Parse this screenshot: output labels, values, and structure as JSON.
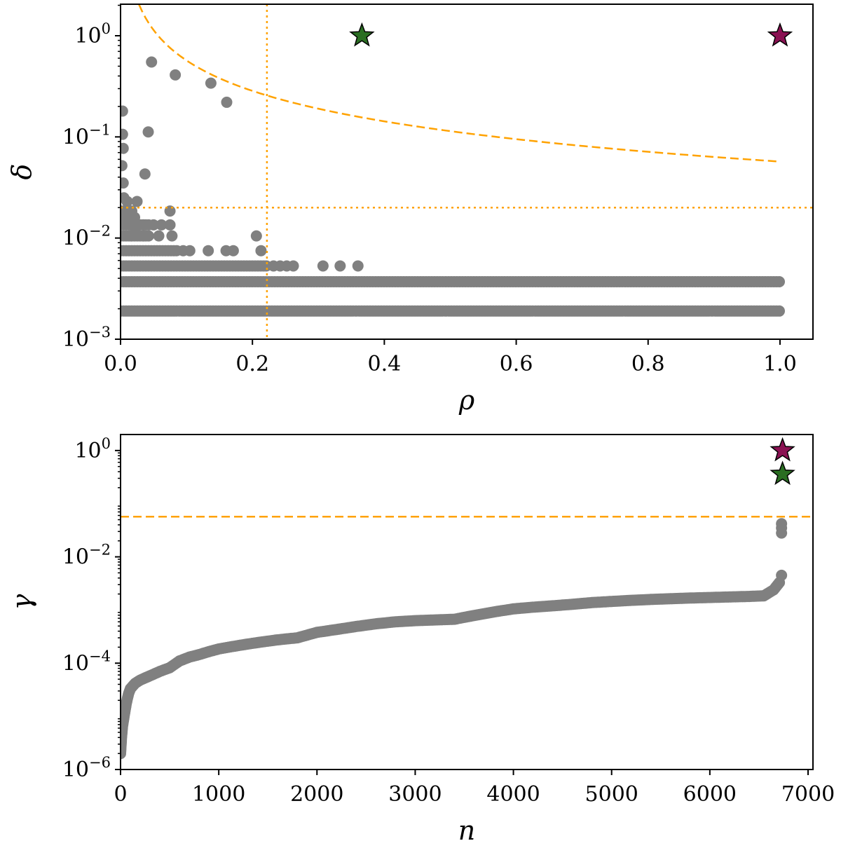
{
  "chart_data": [
    {
      "type": "scatter",
      "xlabel": "ρ",
      "ylabel": "δ",
      "xscale": "linear",
      "yscale": "log",
      "xlim": [
        0.0,
        1.05
      ],
      "ylim": [
        0.001,
        2.05
      ],
      "xticks": [
        {
          "value": 0.0,
          "label": "0.0"
        },
        {
          "value": 0.2,
          "label": "0.2"
        },
        {
          "value": 0.4,
          "label": "0.4"
        },
        {
          "value": 0.6,
          "label": "0.6"
        },
        {
          "value": 0.8,
          "label": "0.8"
        },
        {
          "value": 1.0,
          "label": "1.0"
        }
      ],
      "yticks": [
        {
          "value": 0.001,
          "base": "10",
          "exp": "−3"
        },
        {
          "value": 0.01,
          "base": "10",
          "exp": "−2"
        },
        {
          "value": 0.1,
          "base": "10",
          "exp": "−1"
        },
        {
          "value": 1.0,
          "base": "10",
          "exp": "0"
        }
      ],
      "points_color": "#808080",
      "points": [
        {
          "x": 0.047,
          "y": 0.55
        },
        {
          "x": 0.083,
          "y": 0.41
        },
        {
          "x": 0.137,
          "y": 0.34
        },
        {
          "x": 0.161,
          "y": 0.22
        },
        {
          "x": 0.003,
          "y": 0.18
        },
        {
          "x": 0.003,
          "y": 0.106
        },
        {
          "x": 0.004,
          "y": 0.077
        },
        {
          "x": 0.042,
          "y": 0.112
        },
        {
          "x": 0.002,
          "y": 0.052
        },
        {
          "x": 0.037,
          "y": 0.043
        },
        {
          "x": 0.004,
          "y": 0.035
        },
        {
          "x": 0.005,
          "y": 0.025
        },
        {
          "x": 0.01,
          "y": 0.023
        },
        {
          "x": 0.025,
          "y": 0.023
        },
        {
          "x": 0.075,
          "y": 0.0185
        },
        {
          "x": 0.008,
          "y": 0.016
        },
        {
          "x": 0.014,
          "y": 0.014
        },
        {
          "x": 0.022,
          "y": 0.0125
        },
        {
          "x": 0.035,
          "y": 0.0135
        },
        {
          "x": 0.05,
          "y": 0.0135
        },
        {
          "x": 0.062,
          "y": 0.0135
        },
        {
          "x": 0.075,
          "y": 0.0135
        },
        {
          "x": 0.016,
          "y": 0.0105
        },
        {
          "x": 0.035,
          "y": 0.0105
        },
        {
          "x": 0.058,
          "y": 0.0105
        },
        {
          "x": 0.078,
          "y": 0.0105
        },
        {
          "x": 0.206,
          "y": 0.0105
        },
        {
          "x": 0.095,
          "y": 0.0075
        },
        {
          "x": 0.105,
          "y": 0.0075
        },
        {
          "x": 0.133,
          "y": 0.0075
        },
        {
          "x": 0.16,
          "y": 0.0075
        },
        {
          "x": 0.171,
          "y": 0.0075
        },
        {
          "x": 0.213,
          "y": 0.0075
        },
        {
          "x": 0.232,
          "y": 0.0053
        },
        {
          "x": 0.242,
          "y": 0.0053
        },
        {
          "x": 0.252,
          "y": 0.0053
        },
        {
          "x": 0.262,
          "y": 0.0053
        },
        {
          "x": 0.307,
          "y": 0.0053
        },
        {
          "x": 0.333,
          "y": 0.0053
        },
        {
          "x": 0.36,
          "y": 0.0053
        }
      ],
      "bands": [
        {
          "y": 0.0185,
          "x_from": 0.0,
          "x_to": 0.02
        },
        {
          "y": 0.016,
          "x_from": 0.0,
          "x_to": 0.022
        },
        {
          "y": 0.0135,
          "x_from": 0.0,
          "x_to": 0.045
        },
        {
          "y": 0.0105,
          "x_from": 0.0,
          "x_to": 0.045
        },
        {
          "y": 0.0075,
          "x_from": 0.0,
          "x_to": 0.085
        },
        {
          "y": 0.0053,
          "x_from": 0.0,
          "x_to": 0.223
        },
        {
          "y": 0.0037,
          "x_from": 0.0,
          "x_to": 1.0
        },
        {
          "y": 0.0019,
          "x_from": 0.0,
          "x_to": 1.0
        }
      ],
      "stars": [
        {
          "x": 0.366,
          "y": 1.0,
          "color": "#2a6e22"
        },
        {
          "x": 1.0,
          "y": 1.0,
          "color": "#8a1152"
        }
      ],
      "threshold_curve": {
        "style": "dashed",
        "color": "#ffa200",
        "formula": "δ = 0.057 / ρ",
        "x_from": 0.028,
        "x_to": 1.0,
        "k": 0.057
      },
      "vline": {
        "x": 0.222,
        "style": "dotted",
        "color": "#ffa200"
      },
      "hline": {
        "y": 0.02,
        "style": "dotted",
        "color": "#ffa200"
      }
    },
    {
      "type": "scatter",
      "xlabel": "n",
      "ylabel": "γ",
      "xscale": "linear",
      "yscale": "log",
      "xlim": [
        0,
        7050
      ],
      "ylim": [
        1e-06,
        2.0
      ],
      "xticks": [
        {
          "value": 0,
          "label": "0"
        },
        {
          "value": 1000,
          "label": "1000"
        },
        {
          "value": 2000,
          "label": "2000"
        },
        {
          "value": 3000,
          "label": "3000"
        },
        {
          "value": 4000,
          "label": "4000"
        },
        {
          "value": 5000,
          "label": "5000"
        },
        {
          "value": 6000,
          "label": "6000"
        },
        {
          "value": 7000,
          "label": "7000"
        }
      ],
      "yticks": [
        {
          "value": 1e-06,
          "base": "10",
          "exp": "−6"
        },
        {
          "value": 0.0001,
          "base": "10",
          "exp": "−4"
        },
        {
          "value": 0.01,
          "base": "10",
          "exp": "−2"
        },
        {
          "value": 1.0,
          "base": "10",
          "exp": "0"
        }
      ],
      "points_color": "#808080",
      "curve": [
        [
          0,
          2e-06
        ],
        [
          10,
          4e-06
        ],
        [
          20,
          6.5e-06
        ],
        [
          40,
          1.1e-05
        ],
        [
          60,
          1.8e-05
        ],
        [
          80,
          2.6e-05
        ],
        [
          100,
          3.3e-05
        ],
        [
          150,
          4.2e-05
        ],
        [
          200,
          4.8e-05
        ],
        [
          300,
          5.8e-05
        ],
        [
          400,
          7e-05
        ],
        [
          500,
          8.2e-05
        ],
        [
          600,
          0.00011
        ],
        [
          700,
          0.00013
        ],
        [
          800,
          0.000145
        ],
        [
          900,
          0.000165
        ],
        [
          1000,
          0.000185
        ],
        [
          1200,
          0.000215
        ],
        [
          1400,
          0.000245
        ],
        [
          1600,
          0.000275
        ],
        [
          1800,
          0.0003
        ],
        [
          2000,
          0.00038
        ],
        [
          2200,
          0.00043
        ],
        [
          2400,
          0.00049
        ],
        [
          2600,
          0.00055
        ],
        [
          2800,
          0.0006
        ],
        [
          3000,
          0.00063
        ],
        [
          3200,
          0.00065
        ],
        [
          3400,
          0.00067
        ],
        [
          3600,
          0.00079
        ],
        [
          3800,
          0.00092
        ],
        [
          4000,
          0.00105
        ],
        [
          4200,
          0.00113
        ],
        [
          4400,
          0.0012
        ],
        [
          4600,
          0.00128
        ],
        [
          4800,
          0.00138
        ],
        [
          5000,
          0.00145
        ],
        [
          5200,
          0.00152
        ],
        [
          5400,
          0.00158
        ],
        [
          5600,
          0.00163
        ],
        [
          5800,
          0.00168
        ],
        [
          6000,
          0.00172
        ],
        [
          6200,
          0.00176
        ],
        [
          6400,
          0.0018
        ],
        [
          6550,
          0.00185
        ],
        [
          6650,
          0.0024
        ],
        [
          6720,
          0.0035
        ]
      ],
      "extra_points": [
        {
          "x": 6730,
          "y": 0.0045
        },
        {
          "x": 6730,
          "y": 0.028
        },
        {
          "x": 6730,
          "y": 0.035
        },
        {
          "x": 6730,
          "y": 0.042
        }
      ],
      "stars": [
        {
          "x": 6740,
          "y": 1.0,
          "color": "#8a1152"
        },
        {
          "x": 6740,
          "y": 0.36,
          "color": "#2a6e22"
        }
      ],
      "hline": {
        "y": 0.057,
        "style": "dashed",
        "color": "#ffa200"
      }
    }
  ]
}
